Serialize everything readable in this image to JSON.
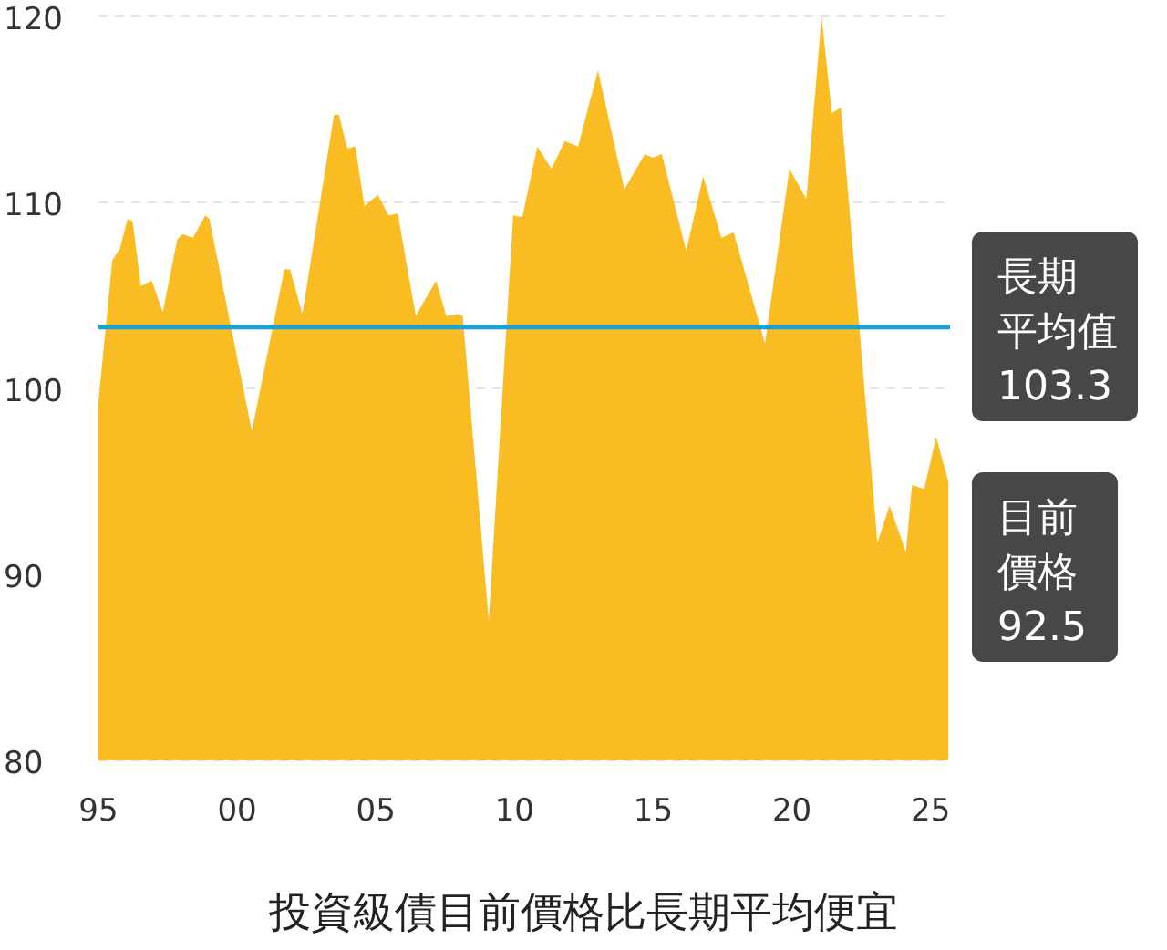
{
  "chart_data": {
    "type": "area",
    "title": "投資級債目前價格比長期平均便宜",
    "x": [
      1995.0,
      1995.5,
      1995.77,
      1996.05,
      1996.23,
      1996.53,
      1996.92,
      1997.32,
      1997.84,
      1998.02,
      1998.41,
      1998.85,
      1999.0,
      2000.53,
      2001.7,
      2001.91,
      2002.35,
      2003.49,
      2003.67,
      2003.97,
      2004.26,
      2004.59,
      2005.07,
      2005.46,
      2005.79,
      2006.44,
      2007.17,
      2007.54,
      2007.98,
      2008.13,
      2009.07,
      2009.95,
      2010.28,
      2010.82,
      2011.33,
      2011.81,
      2012.29,
      2013.01,
      2013.96,
      2014.7,
      2014.98,
      2015.31,
      2016.19,
      2016.8,
      2017.46,
      2017.9,
      2019.03,
      2019.91,
      2020.52,
      2021.07,
      2021.44,
      2021.77,
      2023.08,
      2023.52,
      2024.11,
      2024.33,
      2024.77,
      2025.2,
      2025.64
    ],
    "series": [
      {
        "color": "#f9bc22",
        "values": [
          99.3,
          106.9,
          107.5,
          109.1,
          109.0,
          105.5,
          105.8,
          104.1,
          108.0,
          108.3,
          108.1,
          109.3,
          109.1,
          97.7,
          106.4,
          106.4,
          104.0,
          114.7,
          114.7,
          112.9,
          113.0,
          109.8,
          110.4,
          109.3,
          109.4,
          103.9,
          105.8,
          103.9,
          104.0,
          103.9,
          87.5,
          109.3,
          109.2,
          113.0,
          111.8,
          113.3,
          113.0,
          117.1,
          110.7,
          112.6,
          112.4,
          112.6,
          107.4,
          111.4,
          108.1,
          108.4,
          102.4,
          111.8,
          110.2,
          120.0,
          114.8,
          115.1,
          91.7,
          93.7,
          91.2,
          94.8,
          94.6,
          97.4,
          95.0
        ]
      }
    ],
    "xlim": [
      1995,
      2025.7
    ],
    "ylim": [
      80,
      120
    ],
    "xticks": [
      {
        "value": 1995,
        "label": "95"
      },
      {
        "value": 2000,
        "label": "00"
      },
      {
        "value": 2005,
        "label": "05"
      },
      {
        "value": 2010,
        "label": "10"
      },
      {
        "value": 2015,
        "label": "15"
      },
      {
        "value": 2020,
        "label": "20"
      },
      {
        "value": 2025,
        "label": "25"
      }
    ],
    "yticks": [
      80,
      90,
      100,
      110,
      120
    ],
    "grid": "y",
    "ref_lines": [
      {
        "axis": "y",
        "value": 103.3,
        "label": "長期平均值103.3",
        "color": "#1a9fd6"
      }
    ],
    "annotations": [
      "目前價格92.5"
    ]
  }
}
